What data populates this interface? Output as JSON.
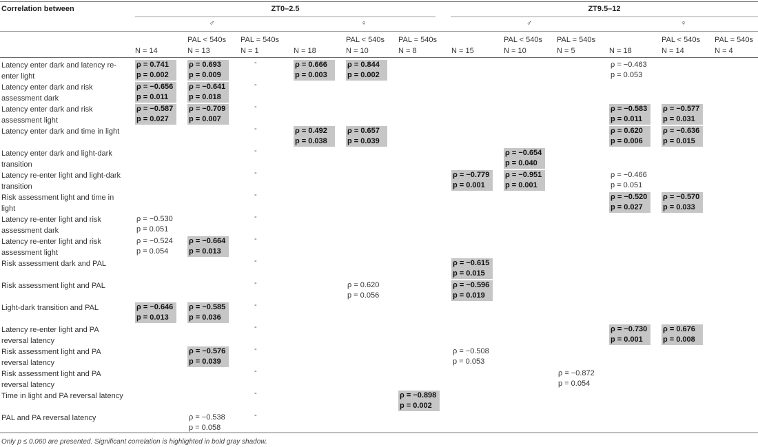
{
  "header": {
    "corner": "Correlation between",
    "group1": "ZT0–2.5",
    "group2": "ZT9.5–12",
    "male": "♂",
    "female": "♀"
  },
  "columns": [
    {
      "sub": "",
      "n": "N = 14"
    },
    {
      "sub": "PAL < 540s",
      "n": "N = 13"
    },
    {
      "sub": "PAL = 540s",
      "n": "N = 1"
    },
    {
      "sub": "",
      "n": "N = 18"
    },
    {
      "sub": "PAL < 540s",
      "n": "N = 10"
    },
    {
      "sub": "PAL = 540s",
      "n": "N = 8"
    },
    {
      "sub": "",
      "n": "N = 15"
    },
    {
      "sub": "PAL < 540s",
      "n": "N = 10"
    },
    {
      "sub": "PAL = 540s",
      "n": "N = 5"
    },
    {
      "sub": "",
      "n": "N = 18"
    },
    {
      "sub": "PAL < 540s",
      "n": "N = 14"
    },
    {
      "sub": "PAL = 540s",
      "n": "N = 4"
    }
  ],
  "rows": [
    {
      "label": "Latency enter dark and latency re-enter light",
      "cells": [
        {
          "c": 0,
          "rho": "ρ = 0.741",
          "p": "p = 0.002",
          "sig": true
        },
        {
          "c": 1,
          "rho": "ρ = 0.693",
          "p": "p = 0.009",
          "sig": true
        },
        {
          "c": 3,
          "rho": "ρ = 0.666",
          "p": "p = 0.003",
          "sig": true
        },
        {
          "c": 4,
          "rho": "ρ = 0.844",
          "p": "p = 0.002",
          "sig": true
        },
        {
          "c": 9,
          "rho": "ρ = −0.463",
          "p": "p = 0.053",
          "sig": false
        }
      ]
    },
    {
      "label": "Latency enter dark and risk assessment dark",
      "cells": [
        {
          "c": 0,
          "rho": "ρ = −0.656",
          "p": "p = 0.011",
          "sig": true
        },
        {
          "c": 1,
          "rho": "ρ = −0.641",
          "p": "p = 0.018",
          "sig": true
        }
      ]
    },
    {
      "label": "Latency enter dark and risk assessment light",
      "cells": [
        {
          "c": 0,
          "rho": "ρ = −0.587",
          "p": "p = 0.027",
          "sig": true
        },
        {
          "c": 1,
          "rho": "ρ = −0.709",
          "p": "p = 0.007",
          "sig": true
        },
        {
          "c": 9,
          "rho": "ρ = −0.583",
          "p": "p = 0.011",
          "sig": true
        },
        {
          "c": 10,
          "rho": "ρ = −0.577",
          "p": "p = 0.031",
          "sig": true
        }
      ]
    },
    {
      "label": "Latency enter dark and time in light",
      "cells": [
        {
          "c": 3,
          "rho": "ρ = 0.492",
          "p": "p = 0.038",
          "sig": true
        },
        {
          "c": 4,
          "rho": "ρ = 0.657",
          "p": "p = 0.039",
          "sig": true
        },
        {
          "c": 9,
          "rho": "ρ = 0.620",
          "p": "p = 0.006",
          "sig": true
        },
        {
          "c": 10,
          "rho": "ρ = −0.636",
          "p": "p = 0.015",
          "sig": true
        }
      ]
    },
    {
      "label": "Latency enter dark and light-dark transition",
      "cells": [
        {
          "c": 7,
          "rho": "ρ = −0.654",
          "p": "p = 0.040",
          "sig": true
        }
      ]
    },
    {
      "label": "Latency re-enter light and light-dark transition",
      "cells": [
        {
          "c": 6,
          "rho": "ρ = −0.779",
          "p": "p = 0.001",
          "sig": true
        },
        {
          "c": 7,
          "rho": "ρ = −0.951",
          "p": "p = 0.001",
          "sig": true
        },
        {
          "c": 9,
          "rho": "ρ = −0.466",
          "p": "p = 0.051",
          "sig": false
        }
      ]
    },
    {
      "label": "Risk assessment light and time in light",
      "cells": [
        {
          "c": 9,
          "rho": "ρ = −0.520",
          "p": "p = 0.027",
          "sig": true
        },
        {
          "c": 10,
          "rho": "ρ = −0.570",
          "p": "p = 0.033",
          "sig": true
        }
      ]
    },
    {
      "label": "Latency re-enter light and risk assessment dark",
      "cells": [
        {
          "c": 0,
          "rho": "ρ = −0.530",
          "p": "p = 0.051",
          "sig": false
        }
      ]
    },
    {
      "label": "Latency re-enter light and risk assessment light",
      "cells": [
        {
          "c": 0,
          "rho": "ρ = −0.524",
          "p": "p = 0.054",
          "sig": false
        },
        {
          "c": 1,
          "rho": "ρ = −0.664",
          "p": "p = 0.013",
          "sig": true
        }
      ]
    },
    {
      "label": "Risk assessment dark and PAL",
      "cells": [
        {
          "c": 6,
          "rho": "ρ = −0.615",
          "p": "p = 0.015",
          "sig": true
        }
      ]
    },
    {
      "label": "Risk assessment light and PAL",
      "cells": [
        {
          "c": 4,
          "rho": "ρ = 0.620",
          "p": "p = 0.056",
          "sig": false
        },
        {
          "c": 6,
          "rho": "ρ = −0.596",
          "p": "p = 0.019",
          "sig": true
        }
      ]
    },
    {
      "label": "Light-dark transition and PAL",
      "cells": [
        {
          "c": 0,
          "rho": "ρ = −0.646",
          "p": "p = 0.013",
          "sig": true
        },
        {
          "c": 1,
          "rho": "ρ = −0.585",
          "p": "p = 0.036",
          "sig": true
        }
      ]
    },
    {
      "label": "Latency re-enter light and PA reversal latency",
      "cells": [
        {
          "c": 9,
          "rho": "ρ = −0.730",
          "p": "p = 0.001",
          "sig": true
        },
        {
          "c": 10,
          "rho": "ρ = 0.676",
          "p": "p = 0.008",
          "sig": true
        }
      ]
    },
    {
      "label": "Risk assessment light and PA reversal latency",
      "cells": [
        {
          "c": 1,
          "rho": "ρ = −0.576",
          "p": "p = 0.039",
          "sig": true
        },
        {
          "c": 6,
          "rho": "ρ = −0.508",
          "p": "p = 0.053",
          "sig": false
        }
      ]
    },
    {
      "label": "Risk assessment light and PA reversal latency",
      "cells": [
        {
          "c": 8,
          "rho": "ρ = −0.872",
          "p": "p = 0.054",
          "sig": false
        }
      ]
    },
    {
      "label": "Time in light and PA reversal latency",
      "cells": [
        {
          "c": 5,
          "rho": "ρ = −0.898",
          "p": "p = 0.002",
          "sig": true
        }
      ]
    },
    {
      "label": "PAL and PA reversal latency",
      "cells": [
        {
          "c": 1,
          "rho": "ρ = −0.538",
          "p": "p = 0.058",
          "sig": false
        }
      ]
    }
  ],
  "dash_symbol": "-",
  "footnote": "Only p ≤ 0.060 are presented. Significant correlation is highlighted in bold gray shadow."
}
